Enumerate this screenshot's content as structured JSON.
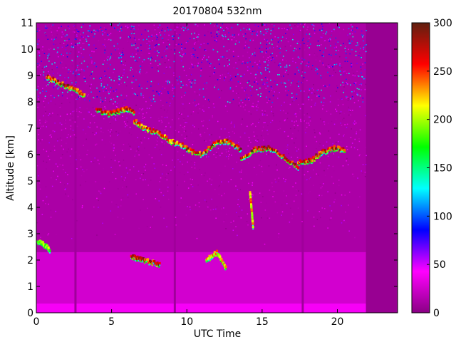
{
  "chart_data": {
    "type": "heatmap",
    "title": "20170804 532nm",
    "xlabel": "UTC Time",
    "ylabel": "Altitude [km]",
    "xlim": [
      0,
      24
    ],
    "ylim": [
      0,
      11
    ],
    "x_ticks": [
      "0",
      "5",
      "10",
      "15",
      "20"
    ],
    "x_tick_values": [
      0,
      5,
      10,
      15,
      20
    ],
    "y_ticks": [
      "0",
      "1",
      "2",
      "3",
      "4",
      "5",
      "6",
      "7",
      "8",
      "9",
      "10",
      "11"
    ],
    "y_tick_values": [
      0,
      1,
      2,
      3,
      4,
      5,
      6,
      7,
      8,
      9,
      10,
      11
    ],
    "colorbar": {
      "range": [
        0,
        300
      ],
      "ticks": [
        "0",
        "50",
        "100",
        "150",
        "200",
        "250",
        "300"
      ],
      "tick_values": [
        0,
        50,
        100,
        150,
        200,
        250,
        300
      ],
      "colormap": [
        "#8a0084",
        "#ff00ff",
        "#0000ff",
        "#00ffff",
        "#00ff00",
        "#ffff00",
        "#ff0000",
        "#602010"
      ]
    },
    "background": {
      "boundary_layer_top_km": 0.35,
      "boundary_layer_value": 40,
      "haze_top_km": 2.3,
      "haze_value": 28,
      "free_troposphere_value": 12,
      "no_data_from_utc": 21.9,
      "data_gaps_utc": [
        2.6,
        9.2,
        17.7
      ]
    },
    "cloud_layers": [
      {
        "x": [
          0.7,
          1.3,
          2.0,
          2.6,
          3.2
        ],
        "alt": [
          8.95,
          8.8,
          8.6,
          8.45,
          8.25
        ],
        "value": 300
      },
      {
        "x": [
          4.0,
          4.8,
          5.4,
          6.0,
          6.5
        ],
        "alt": [
          7.7,
          7.55,
          7.65,
          7.75,
          7.6
        ],
        "value": 300
      },
      {
        "x": [
          6.5,
          7.2,
          8.2,
          9.0,
          10.0
        ],
        "alt": [
          7.3,
          7.0,
          6.8,
          6.5,
          6.3
        ],
        "value": 280
      },
      {
        "x": [
          10.0,
          11.0,
          12.0,
          12.8,
          13.6
        ],
        "alt": [
          6.2,
          6.0,
          6.5,
          6.5,
          6.2
        ],
        "value": 300
      },
      {
        "x": [
          13.6,
          14.5,
          15.5,
          16.5,
          17.4
        ],
        "alt": [
          5.8,
          6.2,
          6.25,
          5.9,
          5.5
        ],
        "value": 300
      },
      {
        "x": [
          17.4,
          18.3,
          19.0,
          19.8,
          20.5
        ],
        "alt": [
          5.7,
          5.8,
          6.1,
          6.25,
          6.2
        ],
        "value": 300
      },
      {
        "x": [
          6.3,
          6.9,
          7.5,
          8.2
        ],
        "alt": [
          2.15,
          2.05,
          1.95,
          1.85
        ],
        "value": 300
      },
      {
        "x": [
          0.1,
          0.5,
          0.9
        ],
        "alt": [
          2.7,
          2.6,
          2.4
        ],
        "value": 220
      },
      {
        "x": [
          14.2,
          14.3,
          14.4
        ],
        "alt": [
          4.6,
          3.9,
          3.3
        ],
        "value": 260
      },
      {
        "x": [
          11.3,
          12.0,
          12.6
        ],
        "alt": [
          2.0,
          2.3,
          1.7
        ],
        "value": 250
      }
    ]
  }
}
